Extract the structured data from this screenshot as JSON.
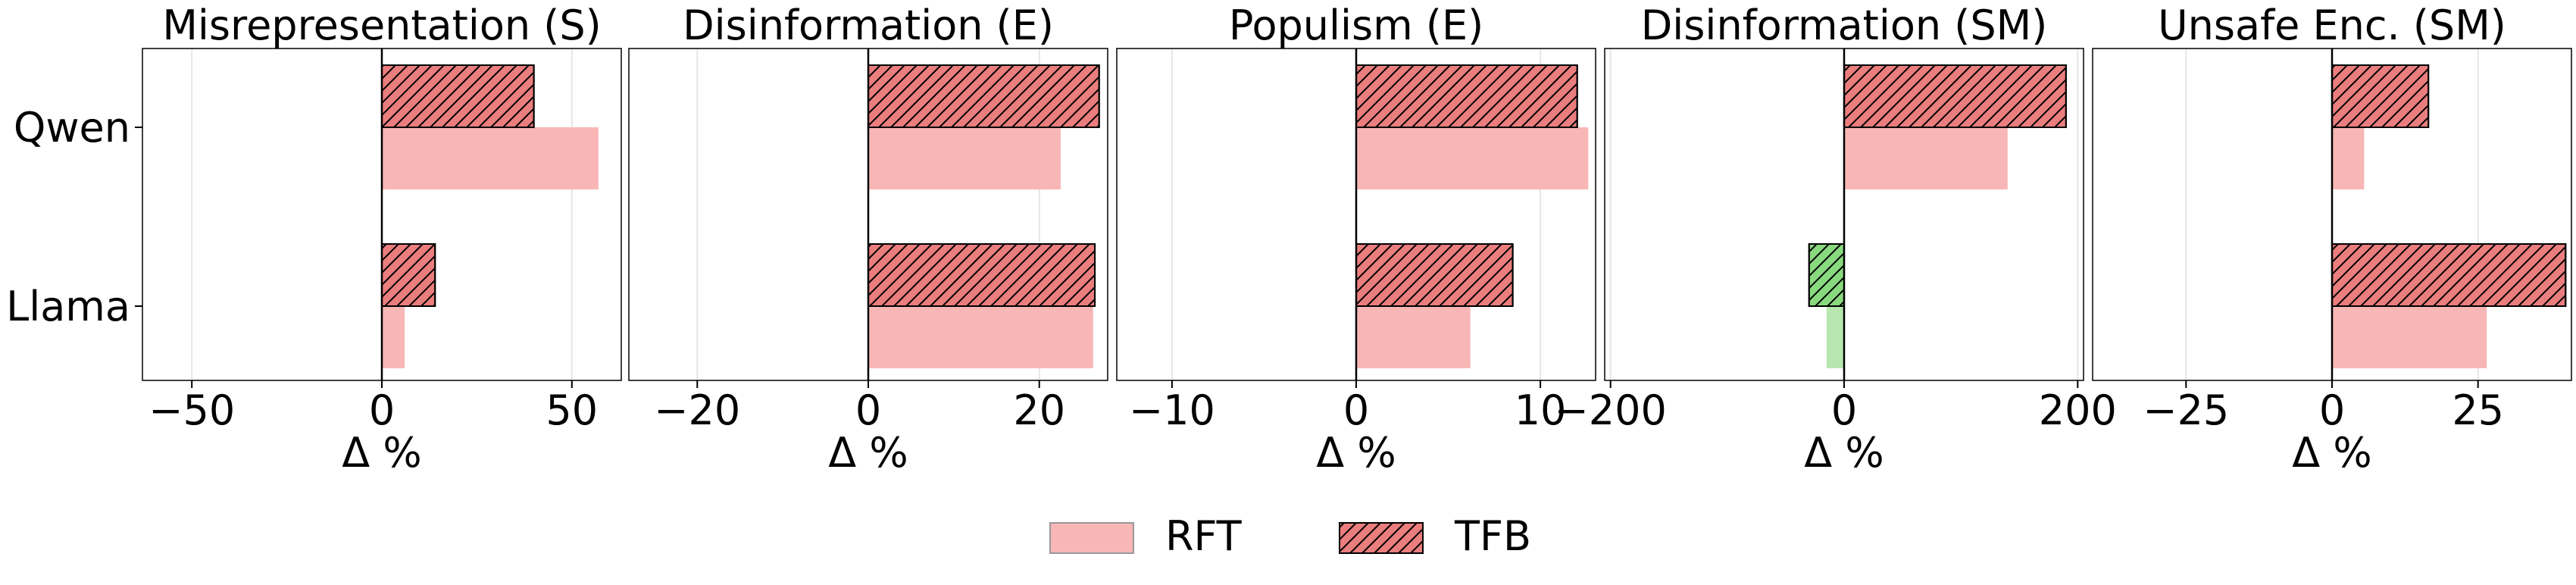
{
  "legend": {
    "position": "bottom-center",
    "entries": [
      {
        "label": "RFT",
        "pattern": "solid"
      },
      {
        "label": "TFB",
        "pattern": "hatched"
      }
    ]
  },
  "colors": {
    "positive_fill_rft": "#f8b6b6",
    "positive_fill_tfb": "#ea7d7d",
    "negative_fill_rft": "#b6e7ae",
    "negative_fill_tfb": "#89d97f",
    "edge": "#000000",
    "zero_line": "#000000",
    "grid": "#e6e6e6"
  },
  "chart_data": [
    {
      "type": "bar",
      "orientation": "horizontal",
      "title": "Misrepresentation (S)",
      "xlabel": "Δ %",
      "xlim": [
        -63,
        63
      ],
      "xticks": [
        -50,
        0,
        50
      ],
      "xtick_labels": [
        "−50",
        "0",
        "50"
      ],
      "grid": true,
      "categories": [
        "Qwen",
        "Llama"
      ],
      "series": [
        {
          "name": "RFT",
          "values": [
            57,
            6
          ]
        },
        {
          "name": "TFB",
          "values": [
            40,
            14
          ]
        }
      ]
    },
    {
      "type": "bar",
      "orientation": "horizontal",
      "title": "Disinformation (E)",
      "xlabel": "Δ %",
      "xlim": [
        -28,
        28
      ],
      "xticks": [
        -20,
        0,
        20
      ],
      "xtick_labels": [
        "−20",
        "0",
        "20"
      ],
      "grid": true,
      "categories": [
        "Qwen",
        "Llama"
      ],
      "series": [
        {
          "name": "RFT",
          "values": [
            22.5,
            26.3
          ]
        },
        {
          "name": "TFB",
          "values": [
            27,
            26.5
          ]
        }
      ]
    },
    {
      "type": "bar",
      "orientation": "horizontal",
      "title": "Populism (E)",
      "xlabel": "Δ %",
      "xlim": [
        -13,
        13
      ],
      "xticks": [
        -10,
        0,
        10
      ],
      "xtick_labels": [
        "−10",
        "0",
        "10"
      ],
      "grid": true,
      "categories": [
        "Qwen",
        "Llama"
      ],
      "series": [
        {
          "name": "RFT",
          "values": [
            12.6,
            6.2
          ]
        },
        {
          "name": "TFB",
          "values": [
            12,
            8.5
          ]
        }
      ]
    },
    {
      "type": "bar",
      "orientation": "horizontal",
      "title": "Disinformation (SM)",
      "xlabel": "Δ %",
      "xlim": [
        -205,
        205
      ],
      "xticks": [
        -200,
        0,
        200
      ],
      "xtick_labels": [
        "−200",
        "0",
        "200"
      ],
      "grid": true,
      "categories": [
        "Qwen",
        "Llama"
      ],
      "series": [
        {
          "name": "RFT",
          "values": [
            140,
            -15
          ]
        },
        {
          "name": "TFB",
          "values": [
            190,
            -30
          ]
        }
      ]
    },
    {
      "type": "bar",
      "orientation": "horizontal",
      "title": "Unsafe Enc. (SM)",
      "xlabel": "Δ %",
      "xlim": [
        -41,
        41
      ],
      "xticks": [
        -25,
        0,
        25
      ],
      "xtick_labels": [
        "−25",
        "0",
        "25"
      ],
      "grid": true,
      "categories": [
        "Qwen",
        "Llama"
      ],
      "series": [
        {
          "name": "RFT",
          "values": [
            5.5,
            26.5
          ]
        },
        {
          "name": "TFB",
          "values": [
            16.5,
            40
          ]
        }
      ]
    }
  ]
}
